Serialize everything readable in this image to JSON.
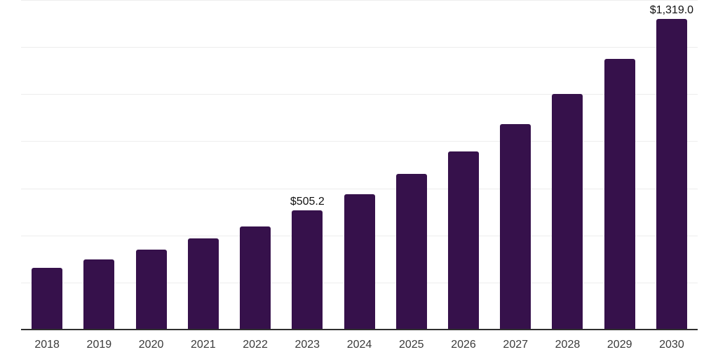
{
  "chart_data": {
    "type": "bar",
    "title": "",
    "xlabel": "",
    "ylabel": "",
    "categories": [
      "2018",
      "2019",
      "2020",
      "2021",
      "2022",
      "2023",
      "2024",
      "2025",
      "2026",
      "2027",
      "2028",
      "2029",
      "2030"
    ],
    "values": [
      263,
      299,
      340,
      388,
      439,
      505.2,
      576,
      660,
      758,
      872,
      1000,
      1150,
      1319
    ],
    "data_labels": [
      "",
      "",
      "",
      "",
      "",
      "$505.2",
      "",
      "",
      "",
      "",
      "",
      "",
      "$1,319.0"
    ],
    "ylim": [
      0,
      1400
    ],
    "gridline_step": 200,
    "grid": true,
    "legend": "none",
    "colors": {
      "bar": "#36114B",
      "gridline": "#EDEDED",
      "axis": "#2F2F2F",
      "tick_label": "#3A3A3A",
      "value_label": "#111111",
      "background": "#FFFFFF"
    }
  }
}
